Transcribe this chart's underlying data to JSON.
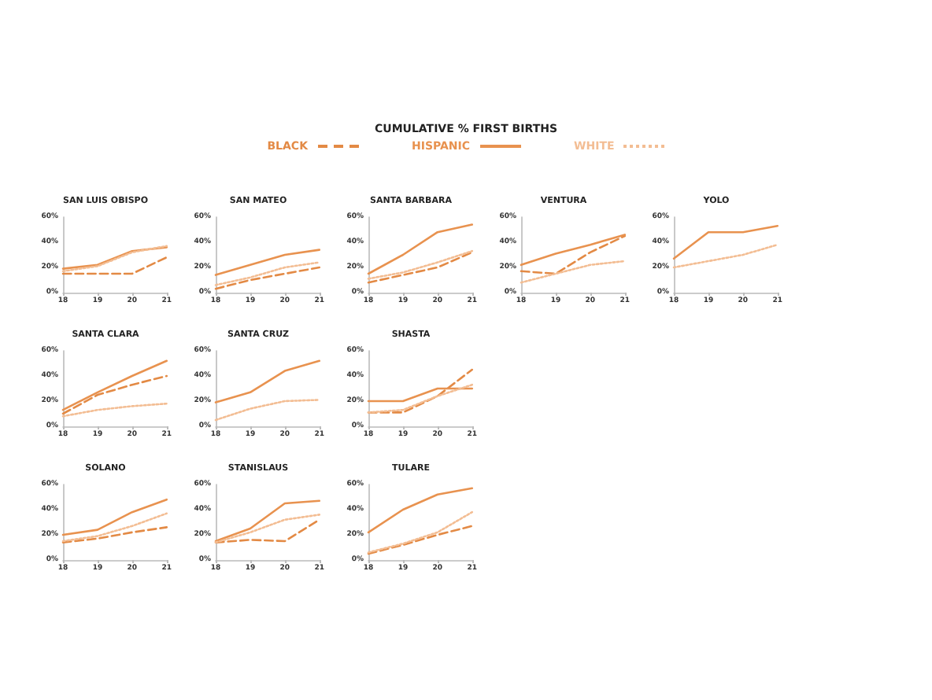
{
  "chart_data": [
    {
      "type": "line",
      "title": "SAN LUIS OBISPO",
      "x": [
        18,
        19,
        20,
        21
      ],
      "xlim": [
        18,
        21
      ],
      "xticks": [
        18,
        19,
        20,
        21
      ],
      "ylim": [
        0,
        60
      ],
      "yticks": [
        {
          "value": 0,
          "label": "0%"
        },
        {
          "value": 20,
          "label": "20%"
        },
        {
          "value": 40,
          "label": "40%"
        },
        {
          "value": 60,
          "label": "60%"
        }
      ],
      "legend": "top",
      "legend_title": "CUMULATIVE % FIRST BIRTHS",
      "marker": "none",
      "series": [
        {
          "name": "BLACK",
          "color": "#e38a45",
          "line_style": "dashed",
          "values": [
            15,
            15,
            15,
            28
          ]
        },
        {
          "name": "HISPANIC",
          "color": "#e8924f",
          "line_style": "solid",
          "values": [
            19,
            22,
            33,
            36
          ]
        },
        {
          "name": "WHITE",
          "color": "#f3bd93",
          "line_style": "dotted",
          "values": [
            17,
            21,
            32,
            37
          ]
        }
      ]
    },
    {
      "type": "line",
      "title": "SAN MATEO",
      "x": [
        18,
        19,
        20,
        21
      ],
      "xlim": [
        18,
        21
      ],
      "xticks": [
        18,
        19,
        20,
        21
      ],
      "ylim": [
        0,
        60
      ],
      "yticks": [
        {
          "value": 0,
          "label": "0%"
        },
        {
          "value": 20,
          "label": "20%"
        },
        {
          "value": 40,
          "label": "40%"
        },
        {
          "value": 60,
          "label": "60%"
        }
      ],
      "marker": "none",
      "series": [
        {
          "color": "#e38a45",
          "line_style": "dashed",
          "values": [
            3,
            10,
            15,
            20
          ]
        },
        {
          "color": "#e8924f",
          "line_style": "solid",
          "values": [
            14,
            22,
            30,
            34
          ]
        },
        {
          "color": "#f3bd93",
          "line_style": "dotted",
          "values": [
            6,
            12,
            20,
            24
          ]
        }
      ]
    },
    {
      "type": "line",
      "title": "SANTA BARBARA",
      "x": [
        18,
        19,
        20,
        21
      ],
      "xlim": [
        18,
        21
      ],
      "xticks": [
        18,
        19,
        20,
        21
      ],
      "ylim": [
        0,
        60
      ],
      "yticks": [
        {
          "value": 0,
          "label": "0%"
        },
        {
          "value": 20,
          "label": "20%"
        },
        {
          "value": 40,
          "label": "40%"
        },
        {
          "value": 60,
          "label": "60%"
        }
      ],
      "marker": "none",
      "series": [
        {
          "color": "#e38a45",
          "line_style": "dashed",
          "values": [
            8,
            14,
            20,
            32
          ]
        },
        {
          "color": "#e8924f",
          "line_style": "solid",
          "values": [
            15,
            30,
            48,
            54
          ]
        },
        {
          "color": "#f3bd93",
          "line_style": "dotted",
          "values": [
            11,
            16,
            24,
            33
          ]
        }
      ]
    },
    {
      "type": "line",
      "title": "VENTURA",
      "x": [
        18,
        19,
        20,
        21
      ],
      "xlim": [
        18,
        21
      ],
      "xticks": [
        18,
        19,
        20,
        21
      ],
      "ylim": [
        0,
        60
      ],
      "yticks": [
        {
          "value": 0,
          "label": "0%"
        },
        {
          "value": 20,
          "label": "20%"
        },
        {
          "value": 40,
          "label": "40%"
        },
        {
          "value": 60,
          "label": "60%"
        }
      ],
      "marker": "none",
      "series": [
        {
          "color": "#e38a45",
          "line_style": "dashed",
          "values": [
            17,
            15,
            32,
            45
          ]
        },
        {
          "color": "#e8924f",
          "line_style": "solid",
          "values": [
            22,
            31,
            38,
            46
          ]
        },
        {
          "color": "#f3bd93",
          "line_style": "dotted",
          "values": [
            8,
            15,
            22,
            25
          ]
        }
      ]
    },
    {
      "type": "line",
      "title": "YOLO",
      "x": [
        18,
        19,
        20,
        21
      ],
      "xlim": [
        18,
        21
      ],
      "xticks": [
        18,
        19,
        20,
        21
      ],
      "ylim": [
        0,
        60
      ],
      "yticks": [
        {
          "value": 0,
          "label": "0%"
        },
        {
          "value": 20,
          "label": "20%"
        },
        {
          "value": 40,
          "label": "40%"
        },
        {
          "value": 60,
          "label": "60%"
        }
      ],
      "marker": "none",
      "series": [
        {
          "color": "#e8924f",
          "line_style": "solid",
          "values": [
            27,
            48,
            48,
            53
          ]
        },
        {
          "color": "#f3bd93",
          "line_style": "dotted",
          "values": [
            20,
            25,
            30,
            38
          ]
        }
      ]
    },
    {
      "type": "line",
      "title": "SANTA CLARA",
      "x": [
        18,
        19,
        20,
        21
      ],
      "xlim": [
        18,
        21
      ],
      "xticks": [
        18,
        19,
        20,
        21
      ],
      "ylim": [
        0,
        60
      ],
      "yticks": [
        {
          "value": 0,
          "label": "0%"
        },
        {
          "value": 20,
          "label": "20%"
        },
        {
          "value": 40,
          "label": "40%"
        },
        {
          "value": 60,
          "label": "60%"
        }
      ],
      "marker": "none",
      "series": [
        {
          "color": "#e38a45",
          "line_style": "dashed",
          "values": [
            10,
            25,
            33,
            40
          ]
        },
        {
          "color": "#e8924f",
          "line_style": "solid",
          "values": [
            13,
            27,
            40,
            52
          ]
        },
        {
          "color": "#f3bd93",
          "line_style": "dotted",
          "values": [
            8,
            13,
            16,
            18
          ]
        }
      ]
    },
    {
      "type": "line",
      "title": "SANTA CRUZ",
      "x": [
        18,
        19,
        20,
        21
      ],
      "xlim": [
        18,
        21
      ],
      "xticks": [
        18,
        19,
        20,
        21
      ],
      "ylim": [
        0,
        60
      ],
      "yticks": [
        {
          "value": 0,
          "label": "0%"
        },
        {
          "value": 20,
          "label": "20%"
        },
        {
          "value": 40,
          "label": "40%"
        },
        {
          "value": 60,
          "label": "60%"
        }
      ],
      "marker": "none",
      "series": [
        {
          "color": "#e8924f",
          "line_style": "solid",
          "values": [
            19,
            27,
            44,
            52
          ]
        },
        {
          "color": "#f3bd93",
          "line_style": "dotted",
          "values": [
            5,
            14,
            20,
            21
          ]
        }
      ]
    },
    {
      "type": "line",
      "title": "SHASTA",
      "x": [
        18,
        19,
        20,
        21
      ],
      "xlim": [
        18,
        21
      ],
      "xticks": [
        18,
        19,
        20,
        21
      ],
      "ylim": [
        0,
        60
      ],
      "yticks": [
        {
          "value": 0,
          "label": "0%"
        },
        {
          "value": 20,
          "label": "20%"
        },
        {
          "value": 40,
          "label": "40%"
        },
        {
          "value": 60,
          "label": "60%"
        }
      ],
      "marker": "none",
      "series": [
        {
          "color": "#e38a45",
          "line_style": "dashed",
          "values": [
            11,
            11,
            24,
            45
          ]
        },
        {
          "color": "#e8924f",
          "line_style": "solid",
          "values": [
            20,
            20,
            30,
            30
          ]
        },
        {
          "color": "#f3bd93",
          "line_style": "dotted",
          "values": [
            11,
            13,
            24,
            33
          ]
        }
      ]
    },
    {
      "type": "line",
      "title": "SOLANO",
      "x": [
        18,
        19,
        20,
        21
      ],
      "xlim": [
        18,
        21
      ],
      "xticks": [
        18,
        19,
        20,
        21
      ],
      "ylim": [
        0,
        60
      ],
      "yticks": [
        {
          "value": 0,
          "label": "0%"
        },
        {
          "value": 20,
          "label": "20%"
        },
        {
          "value": 40,
          "label": "40%"
        },
        {
          "value": 60,
          "label": "60%"
        }
      ],
      "marker": "none",
      "series": [
        {
          "color": "#e38a45",
          "line_style": "dashed",
          "values": [
            14,
            17,
            22,
            26
          ]
        },
        {
          "color": "#e8924f",
          "line_style": "solid",
          "values": [
            20,
            24,
            38,
            48
          ]
        },
        {
          "color": "#f3bd93",
          "line_style": "dotted",
          "values": [
            15,
            19,
            27,
            37
          ]
        }
      ]
    },
    {
      "type": "line",
      "title": "STANISLAUS",
      "x": [
        18,
        19,
        20,
        21
      ],
      "xlim": [
        18,
        21
      ],
      "xticks": [
        18,
        19,
        20,
        21
      ],
      "ylim": [
        0,
        60
      ],
      "yticks": [
        {
          "value": 0,
          "label": "0%"
        },
        {
          "value": 20,
          "label": "20%"
        },
        {
          "value": 40,
          "label": "40%"
        },
        {
          "value": 60,
          "label": "60%"
        }
      ],
      "marker": "none",
      "series": [
        {
          "color": "#e38a45",
          "line_style": "dashed",
          "values": [
            14,
            16,
            15,
            32
          ]
        },
        {
          "color": "#e8924f",
          "line_style": "solid",
          "values": [
            15,
            25,
            45,
            47
          ]
        },
        {
          "color": "#f3bd93",
          "line_style": "dotted",
          "values": [
            14,
            22,
            32,
            36
          ]
        }
      ]
    },
    {
      "type": "line",
      "title": "TULARE",
      "x": [
        18,
        19,
        20,
        21
      ],
      "xlim": [
        18,
        21
      ],
      "xticks": [
        18,
        19,
        20,
        21
      ],
      "ylim": [
        0,
        60
      ],
      "yticks": [
        {
          "value": 0,
          "label": "0%"
        },
        {
          "value": 20,
          "label": "20%"
        },
        {
          "value": 40,
          "label": "40%"
        },
        {
          "value": 60,
          "label": "60%"
        }
      ],
      "marker": "none",
      "series": [
        {
          "color": "#e38a45",
          "line_style": "dashed",
          "values": [
            5,
            12,
            20,
            27
          ]
        },
        {
          "color": "#e8924f",
          "line_style": "solid",
          "values": [
            22,
            40,
            52,
            57
          ]
        },
        {
          "color": "#f3bd93",
          "line_style": "dotted",
          "values": [
            6,
            13,
            22,
            38
          ]
        }
      ]
    }
  ]
}
